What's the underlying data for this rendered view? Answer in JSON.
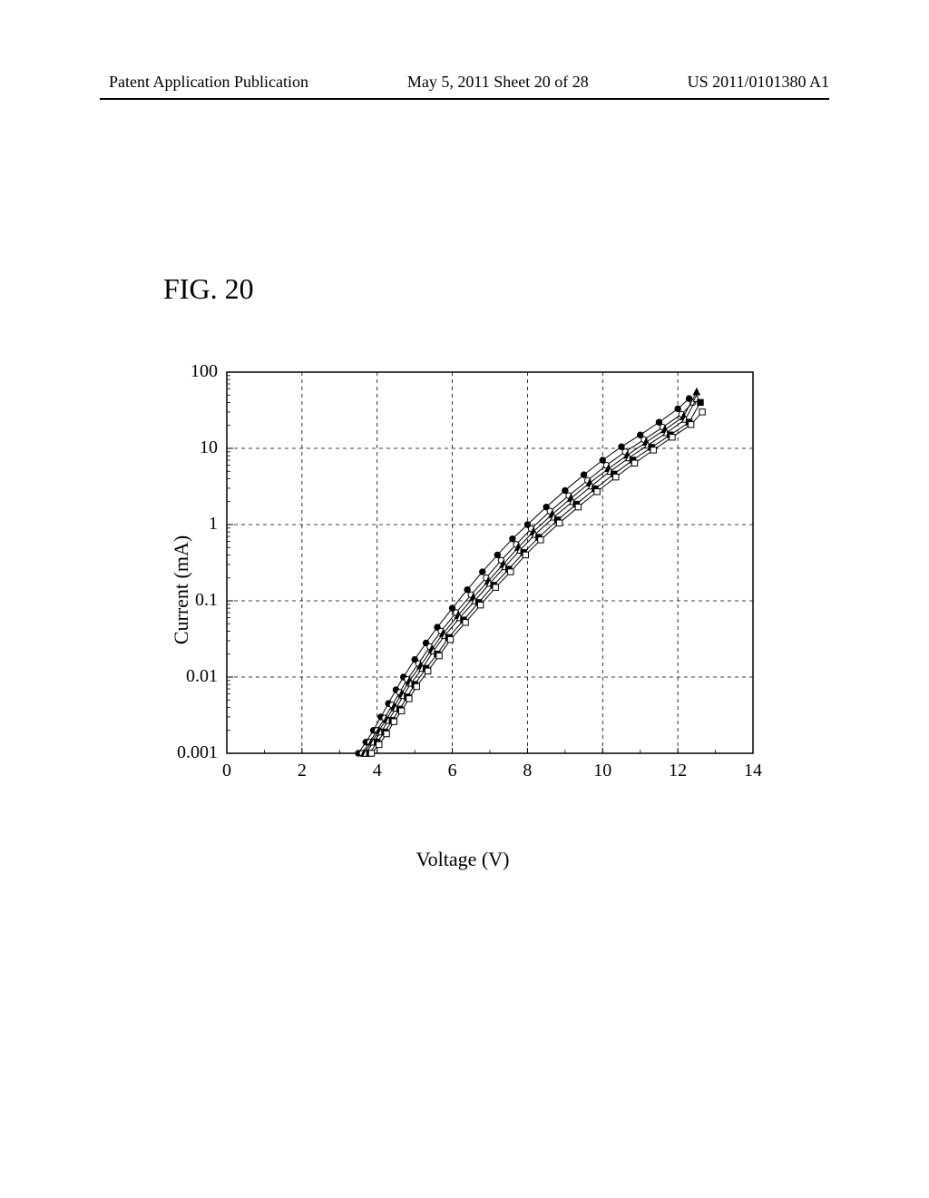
{
  "header": {
    "left": "Patent Application Publication",
    "middle": "May 5, 2011  Sheet 20 of 28",
    "right": "US 2011/0101380 A1"
  },
  "figure": {
    "label": "FIG. 20"
  },
  "chart": {
    "type": "line",
    "x_label": "Voltage  (V)",
    "y_label": "Current  (mA)",
    "x_scale": "linear",
    "y_scale": "log",
    "xlim": [
      0,
      14
    ],
    "ylim": [
      0.001,
      100
    ],
    "xtick_step": 2,
    "xticks": [
      0,
      2,
      4,
      6,
      8,
      10,
      12,
      14
    ],
    "yticks": [
      0.001,
      0.01,
      0.1,
      1,
      10,
      100
    ],
    "ytick_labels": [
      "0.001",
      "0.01",
      "0.1",
      "1",
      "10",
      "100"
    ],
    "grid_on": true,
    "grid_color": "#000000",
    "grid_dash": "4,4",
    "border_color": "#000000",
    "background_color": "#ffffff",
    "axis_font_size": 22,
    "tick_font_size": 20,
    "minor_ticks_y": true,
    "series": [
      {
        "name": "s1",
        "marker": "circle",
        "filled": true,
        "color": "#000000",
        "line_color": "#000000",
        "data": [
          [
            3.5,
            0.001
          ],
          [
            3.7,
            0.0014
          ],
          [
            3.9,
            0.002
          ],
          [
            4.1,
            0.003
          ],
          [
            4.3,
            0.0045
          ],
          [
            4.5,
            0.0068
          ],
          [
            4.7,
            0.01
          ],
          [
            5.0,
            0.017
          ],
          [
            5.3,
            0.028
          ],
          [
            5.6,
            0.045
          ],
          [
            6.0,
            0.08
          ],
          [
            6.4,
            0.14
          ],
          [
            6.8,
            0.24
          ],
          [
            7.2,
            0.4
          ],
          [
            7.6,
            0.65
          ],
          [
            8.0,
            1.0
          ],
          [
            8.5,
            1.7
          ],
          [
            9.0,
            2.8
          ],
          [
            9.5,
            4.5
          ],
          [
            10.0,
            7.0
          ],
          [
            10.5,
            10.5
          ],
          [
            11.0,
            15
          ],
          [
            11.5,
            22
          ],
          [
            12.0,
            33
          ],
          [
            12.3,
            45
          ]
        ]
      },
      {
        "name": "s2",
        "marker": "circle",
        "filled": false,
        "color": "#000000",
        "line_color": "#000000",
        "data": [
          [
            3.6,
            0.001
          ],
          [
            3.8,
            0.0014
          ],
          [
            4.0,
            0.002
          ],
          [
            4.2,
            0.0029
          ],
          [
            4.4,
            0.0043
          ],
          [
            4.6,
            0.0063
          ],
          [
            4.8,
            0.0093
          ],
          [
            5.1,
            0.015
          ],
          [
            5.4,
            0.025
          ],
          [
            5.7,
            0.04
          ],
          [
            6.1,
            0.07
          ],
          [
            6.5,
            0.12
          ],
          [
            6.9,
            0.2
          ],
          [
            7.3,
            0.34
          ],
          [
            7.7,
            0.55
          ],
          [
            8.1,
            0.88
          ],
          [
            8.6,
            1.5
          ],
          [
            9.1,
            2.4
          ],
          [
            9.6,
            3.8
          ],
          [
            10.1,
            6.0
          ],
          [
            10.6,
            9.0
          ],
          [
            11.1,
            13
          ],
          [
            11.6,
            19
          ],
          [
            12.1,
            28
          ],
          [
            12.4,
            40
          ]
        ]
      },
      {
        "name": "s3",
        "marker": "triangle",
        "filled": true,
        "color": "#000000",
        "line_color": "#000000",
        "data": [
          [
            3.65,
            0.001
          ],
          [
            3.85,
            0.0014
          ],
          [
            4.05,
            0.002
          ],
          [
            4.25,
            0.0028
          ],
          [
            4.45,
            0.0041
          ],
          [
            4.65,
            0.006
          ],
          [
            4.85,
            0.0088
          ],
          [
            5.15,
            0.014
          ],
          [
            5.45,
            0.023
          ],
          [
            5.75,
            0.037
          ],
          [
            6.15,
            0.064
          ],
          [
            6.55,
            0.11
          ],
          [
            6.95,
            0.18
          ],
          [
            7.35,
            0.3
          ],
          [
            7.75,
            0.5
          ],
          [
            8.15,
            0.8
          ],
          [
            8.65,
            1.35
          ],
          [
            9.15,
            2.2
          ],
          [
            9.65,
            3.5
          ],
          [
            10.15,
            5.4
          ],
          [
            10.65,
            8.1
          ],
          [
            11.15,
            12
          ],
          [
            11.65,
            17.5
          ],
          [
            12.15,
            26
          ],
          [
            12.5,
            55
          ]
        ]
      },
      {
        "name": "s4",
        "marker": "triangle",
        "filled": false,
        "color": "#000000",
        "line_color": "#000000",
        "data": [
          [
            3.7,
            0.001
          ],
          [
            3.9,
            0.0014
          ],
          [
            4.1,
            0.0019
          ],
          [
            4.3,
            0.0027
          ],
          [
            4.5,
            0.0039
          ],
          [
            4.7,
            0.0057
          ],
          [
            4.9,
            0.0083
          ],
          [
            5.2,
            0.013
          ],
          [
            5.5,
            0.022
          ],
          [
            5.8,
            0.035
          ],
          [
            6.2,
            0.06
          ],
          [
            6.6,
            0.1
          ],
          [
            7.0,
            0.17
          ],
          [
            7.4,
            0.28
          ],
          [
            7.8,
            0.46
          ],
          [
            8.2,
            0.74
          ],
          [
            8.7,
            1.25
          ],
          [
            9.2,
            2.0
          ],
          [
            9.7,
            3.2
          ],
          [
            10.2,
            5.0
          ],
          [
            10.7,
            7.5
          ],
          [
            11.2,
            11
          ],
          [
            11.7,
            16
          ],
          [
            12.2,
            24
          ],
          [
            12.5,
            45
          ]
        ]
      },
      {
        "name": "s5",
        "marker": "square",
        "filled": true,
        "color": "#000000",
        "line_color": "#000000",
        "data": [
          [
            3.8,
            0.001
          ],
          [
            4.0,
            0.0014
          ],
          [
            4.2,
            0.0019
          ],
          [
            4.4,
            0.0027
          ],
          [
            4.6,
            0.0038
          ],
          [
            4.8,
            0.0055
          ],
          [
            5.0,
            0.008
          ],
          [
            5.3,
            0.013
          ],
          [
            5.6,
            0.02
          ],
          [
            5.9,
            0.033
          ],
          [
            6.3,
            0.056
          ],
          [
            6.7,
            0.095
          ],
          [
            7.1,
            0.16
          ],
          [
            7.5,
            0.26
          ],
          [
            7.9,
            0.43
          ],
          [
            8.3,
            0.68
          ],
          [
            8.8,
            1.15
          ],
          [
            9.3,
            1.85
          ],
          [
            9.8,
            2.95
          ],
          [
            10.3,
            4.6
          ],
          [
            10.8,
            7.0
          ],
          [
            11.3,
            10.3
          ],
          [
            11.8,
            15
          ],
          [
            12.3,
            22
          ],
          [
            12.6,
            40
          ]
        ]
      },
      {
        "name": "s6",
        "marker": "square",
        "filled": false,
        "color": "#000000",
        "line_color": "#000000",
        "data": [
          [
            3.85,
            0.001
          ],
          [
            4.05,
            0.0013
          ],
          [
            4.25,
            0.0018
          ],
          [
            4.45,
            0.0026
          ],
          [
            4.65,
            0.0036
          ],
          [
            4.85,
            0.0052
          ],
          [
            5.05,
            0.0075
          ],
          [
            5.35,
            0.012
          ],
          [
            5.65,
            0.019
          ],
          [
            5.95,
            0.031
          ],
          [
            6.35,
            0.052
          ],
          [
            6.75,
            0.088
          ],
          [
            7.15,
            0.15
          ],
          [
            7.55,
            0.24
          ],
          [
            7.95,
            0.4
          ],
          [
            8.35,
            0.63
          ],
          [
            8.85,
            1.05
          ],
          [
            9.35,
            1.7
          ],
          [
            9.85,
            2.7
          ],
          [
            10.35,
            4.2
          ],
          [
            10.85,
            6.4
          ],
          [
            11.35,
            9.5
          ],
          [
            11.85,
            14
          ],
          [
            12.35,
            20.5
          ],
          [
            12.65,
            30
          ]
        ]
      }
    ]
  }
}
